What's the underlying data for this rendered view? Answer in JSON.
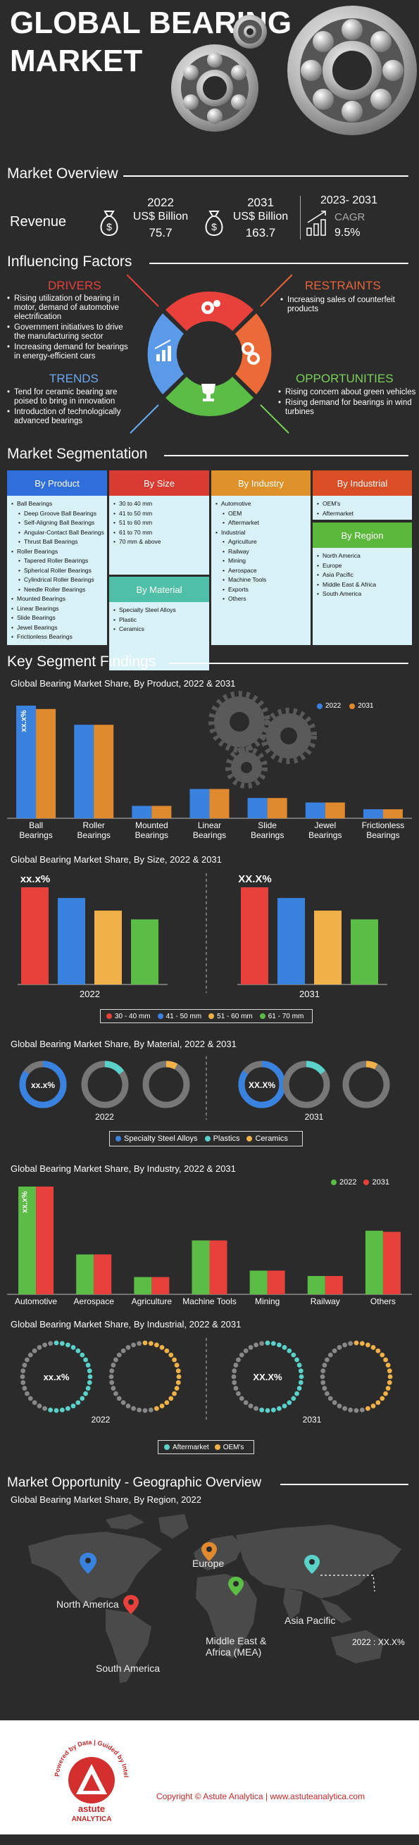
{
  "header": {
    "title_line1": "GLOBAL BEARING",
    "title_line2": "MARKET"
  },
  "overview": {
    "section_title": "Market Overview",
    "revenue_label": "Revenue",
    "y2022": {
      "year": "2022",
      "unit": "US$ Billion",
      "value": "75.7"
    },
    "y2031": {
      "year": "2031",
      "unit": "US$ Billion",
      "value": "163.7"
    },
    "cagr": {
      "years": "2023- 2031",
      "label": "CAGR",
      "value": "9.5%"
    }
  },
  "factors": {
    "section_title": "Influencing Factors",
    "drivers": {
      "title": "DRIVERS",
      "items": [
        "Rising utilization of bearing in motor, demand of automotive electrification",
        "Government initiatives to drive the manufacturing sector",
        "Increasing demand for bearings in energy-efficient cars"
      ]
    },
    "restraints": {
      "title": "RESTRAINTS",
      "items": [
        "Increasing sales of counterfeit products"
      ]
    },
    "trends": {
      "title": "TRENDS",
      "items": [
        "Tend for ceramic bearing are poised to bring in innovation",
        "Introduction of technologically advanced bearings"
      ]
    },
    "opportunities": {
      "title": "OPPORTUNITIES",
      "items": [
        "Rising concern about green vehicles",
        "Rising demand for bearings in wind turbines"
      ]
    }
  },
  "segmentation": {
    "section_title": "Market Segmentation",
    "product": {
      "title": "By Product",
      "items": [
        {
          "t": "Ball Bearings",
          "sub": false
        },
        {
          "t": "Deep Groove Ball Bearings",
          "sub": true
        },
        {
          "t": "Self-Aligning Ball Bearings",
          "sub": true
        },
        {
          "t": "Angular-Contact Ball Bearings",
          "sub": true
        },
        {
          "t": "Thrust Ball Bearings",
          "sub": true
        },
        {
          "t": "Roller Bearings",
          "sub": false
        },
        {
          "t": "Tapered Roller Bearings",
          "sub": true
        },
        {
          "t": "Spherical Roller Bearings",
          "sub": true
        },
        {
          "t": "Cylindrical Roller Bearings",
          "sub": true
        },
        {
          "t": "Needle Roller Bearings",
          "sub": true
        },
        {
          "t": "Mounted Bearings",
          "sub": false
        },
        {
          "t": "Linear Bearings",
          "sub": false
        },
        {
          "t": "Slide Bearings",
          "sub": false
        },
        {
          "t": "Jewel Bearings",
          "sub": false
        },
        {
          "t": "Frictionless Bearings",
          "sub": false
        }
      ]
    },
    "size": {
      "title": "By Size",
      "items": [
        "30 to 40 mm",
        "41 to 50 mm",
        "51 to 60 mm",
        "61 to 70 mm",
        "70 mm & above"
      ]
    },
    "material": {
      "title": "By Material",
      "items": [
        "Specialty Steel Alloys",
        "Plastic",
        "Ceramics"
      ]
    },
    "industry": {
      "title": "By Industry",
      "items": [
        {
          "t": "Automotive",
          "sub": false
        },
        {
          "t": "OEM",
          "sub": true
        },
        {
          "t": "Aftermarket",
          "sub": true
        },
        {
          "t": "Industrial",
          "sub": false
        },
        {
          "t": "Agriculture",
          "sub": true
        },
        {
          "t": "Railway",
          "sub": true
        },
        {
          "t": "Mining",
          "sub": true
        },
        {
          "t": "Aerospace",
          "sub": true
        },
        {
          "t": "Machine Tools",
          "sub": true
        },
        {
          "t": "Exports",
          "sub": true
        },
        {
          "t": "Others",
          "sub": true
        }
      ]
    },
    "industrial": {
      "title": "By Industrial",
      "items": [
        "OEM's",
        "Aftermarket"
      ]
    },
    "region": {
      "title": "By Region",
      "items": [
        "North America",
        "Europe",
        "Asia Pacific",
        "Middle East & Africa",
        "South America"
      ]
    }
  },
  "findings": {
    "section_title": "Key Segment Findings"
  },
  "chart_product": {
    "title": "Global Bearing Market Share, By Product, 2022 & 2031",
    "legend": [
      "2022",
      "2031"
    ],
    "annotation": "xx.x%"
  },
  "chart_size": {
    "title": "Global Bearing Market Share, By Size, 2022 & 2031",
    "legend": [
      "30 - 40 mm",
      "41 - 50 mm",
      "51 - 60 mm",
      "61 - 70 mm"
    ],
    "label_2022": "2022",
    "label_2031": "2031",
    "annot_2022": "xx.x%",
    "annot_2031": "XX.X%"
  },
  "chart_material": {
    "title": "Global Bearing Market Share, By Material, 2022 & 2031",
    "legend": [
      "Specialty Steel Alloys",
      "Plastics",
      "Ceramics"
    ],
    "label_2022": "2022",
    "label_2031": "2031",
    "annot_2022": "xx.x%",
    "annot_2031": "XX.X%"
  },
  "chart_industry": {
    "title": "Global Bearing Market Share, By Industry, 2022 & 2031",
    "legend": [
      "2022",
      "2031"
    ],
    "annotation": "xx.x%"
  },
  "chart_industrial": {
    "title": "Global Bearing Market Share, By Industrial, 2022 & 2031",
    "legend": [
      "Aftermarket",
      "OEM's"
    ],
    "label_2022": "2022",
    "label_2031": "2031",
    "annot_2022": "xx.x%",
    "annot_2031": "XX.X%"
  },
  "geo": {
    "section_title": "Market Opportunity - Geographic Overview",
    "chart_title": "Global Bearing Market Share, By Region, 2022",
    "regions": {
      "na": "North America",
      "eu": "Europe",
      "mea": "Middle East & Africa (MEA)",
      "ap": "Asia Pacific",
      "sa": "South America"
    },
    "callout": "2022 : XX.X%"
  },
  "footer": {
    "brand1": "astute",
    "brand2": "ANALYTICA",
    "tagline": "Powered by Data | Guided by Intelligence",
    "copyright": "Copyright © Astute Analytica | www.astuteanalytica.com"
  },
  "colors": {
    "red": "#e8403b",
    "blue": "#3a82e0",
    "orange": "#e08a2f",
    "green": "#5bbd45",
    "yellow": "#f0b248",
    "teal": "#5ad2c9"
  },
  "chart_data": [
    {
      "type": "bar",
      "title": "Global Bearing Market Share, By Product, 2022 & 2031",
      "categories": [
        "Ball Bearings",
        "Roller Bearings",
        "Mounted Bearings",
        "Linear Bearings",
        "Slide Bearings",
        "Jewel Bearings",
        "Frictionless Bearings"
      ],
      "series": [
        {
          "name": "2022",
          "values": [
            100,
            83,
            11,
            26,
            18,
            14,
            8
          ]
        },
        {
          "name": "2031",
          "values": [
            97,
            83,
            11,
            26,
            18,
            14,
            8
          ]
        }
      ],
      "ylim": [
        0,
        100
      ]
    },
    {
      "type": "bar",
      "title": "Global Bearing Market Share, By Size, 2022 & 2031",
      "categories": [
        "2022",
        "2031"
      ],
      "series": [
        {
          "name": "30 - 40 mm",
          "values": [
            100,
            100
          ]
        },
        {
          "name": "41 - 50 mm",
          "values": [
            89,
            89
          ]
        },
        {
          "name": "51 - 60 mm",
          "values": [
            76,
            76
          ]
        },
        {
          "name": "61 - 70 mm",
          "values": [
            67,
            67
          ]
        }
      ],
      "ylim": [
        0,
        100
      ]
    },
    {
      "type": "pie",
      "title": "Global Bearing Market Share, By Material, 2022 & 2031",
      "groups": [
        "2022",
        "2031"
      ],
      "series": [
        {
          "name": "Specialty Steel Alloys",
          "values": [
            85,
            85
          ]
        },
        {
          "name": "Plastics",
          "values": [
            15,
            15
          ]
        },
        {
          "name": "Ceramics",
          "values": [
            8,
            8
          ]
        }
      ]
    },
    {
      "type": "bar",
      "title": "Global Bearing Market Share, By Industry, 2022 & 2031",
      "categories": [
        "Automotive",
        "Aerospace",
        "Agriculture",
        "Machine Tools",
        "Mining",
        "Railway",
        "Others"
      ],
      "series": [
        {
          "name": "2022",
          "values": [
            100,
            37,
            16,
            50,
            22,
            17,
            59
          ]
        },
        {
          "name": "2031",
          "values": [
            100,
            37,
            16,
            50,
            22,
            17,
            58
          ]
        }
      ],
      "ylim": [
        0,
        100
      ]
    },
    {
      "type": "pie",
      "title": "Global Bearing Market Share, By Industrial, 2022 & 2031",
      "groups": [
        "2022",
        "2031"
      ],
      "series": [
        {
          "name": "Aftermarket",
          "values": [
            55,
            55
          ]
        },
        {
          "name": "OEM's",
          "values": [
            45,
            45
          ]
        }
      ]
    }
  ]
}
